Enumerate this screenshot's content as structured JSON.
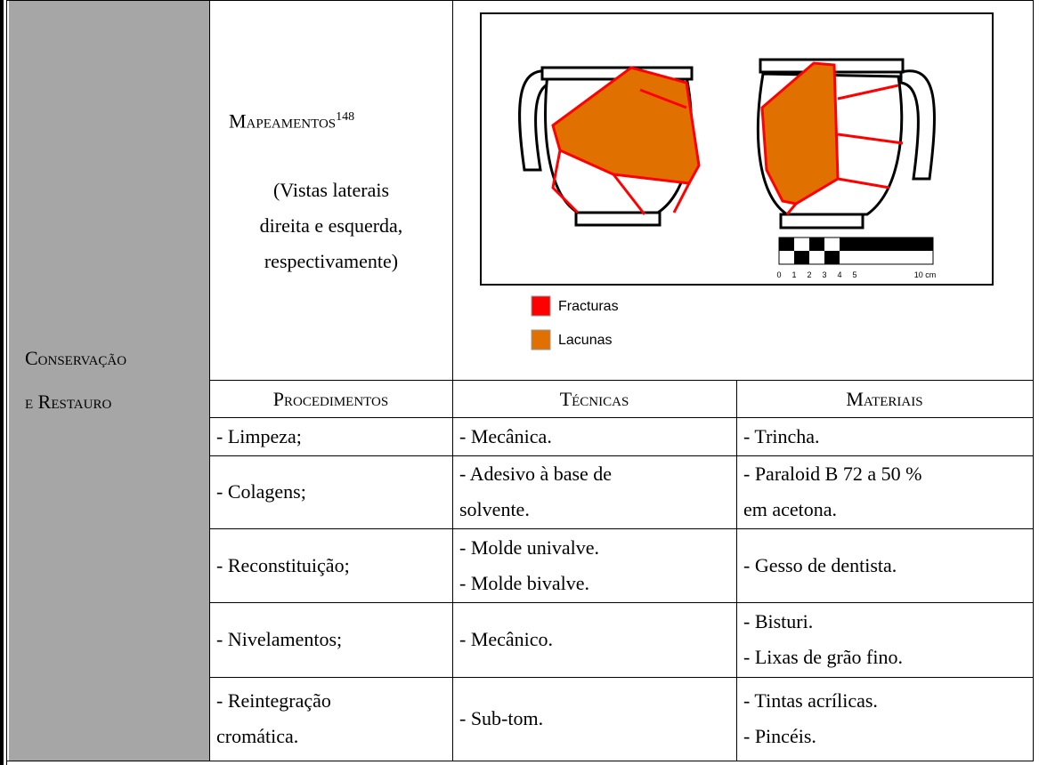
{
  "section": {
    "lines": [
      "Conservação",
      "e Restauro"
    ]
  },
  "mapping": {
    "title": "Mapeamentos",
    "footnote": "148",
    "caption": [
      "(Vistas laterais",
      "direita e esquerda,",
      "respectivamente)"
    ]
  },
  "figure": {
    "legend": [
      {
        "label": "Fracturas",
        "color": "#ff0000"
      },
      {
        "label": "Lacunas",
        "color": "#e07000"
      }
    ],
    "scale": [
      "0",
      "1",
      "2",
      "3",
      "4",
      "5",
      "10 cm"
    ]
  },
  "table": {
    "headers": [
      "Procedimentos",
      "Técnicas",
      "Materiais"
    ],
    "rows": [
      [
        [
          "- Limpeza;"
        ],
        [
          "- Mecânica."
        ],
        [
          "- Trincha."
        ]
      ],
      [
        [
          "- Colagens;"
        ],
        [
          "- Adesivo à base de",
          "solvente."
        ],
        [
          "- Paraloid B 72 a 50 %",
          "em acetona."
        ]
      ],
      [
        [
          "- Reconstituição;"
        ],
        [
          "- Molde univalve.",
          "- Molde bivalve."
        ],
        [
          "- Gesso de dentista."
        ]
      ],
      [
        [
          "- Nivelamentos;"
        ],
        [
          "- Mecânico."
        ],
        [
          "- Bisturi.",
          "- Lixas de grão fino."
        ]
      ],
      [
        [
          "- Reintegração",
          "cromática."
        ],
        [
          "- Sub-tom."
        ],
        [
          "- Tintas acrílicas.",
          "- Pincéis."
        ]
      ]
    ]
  }
}
